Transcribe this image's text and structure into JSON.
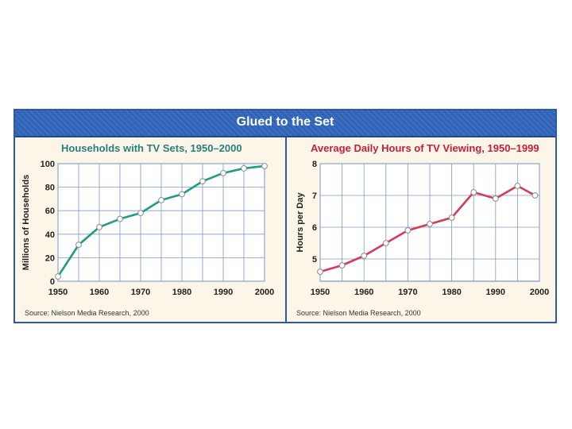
{
  "banner": {
    "title": "Glued to the Set"
  },
  "chart_data": [
    {
      "type": "line",
      "title": "Households with TV Sets, 1950–2000",
      "xlabel": "",
      "ylabel": "Millions of Households",
      "x": [
        1950,
        1955,
        1960,
        1965,
        1970,
        1975,
        1980,
        1985,
        1990,
        1995,
        2000
      ],
      "values": [
        4,
        31,
        46,
        53,
        58,
        69,
        74,
        85,
        92,
        96,
        98
      ],
      "xticks": [
        "1950",
        "1960",
        "1970",
        "1980",
        "1990",
        "2000"
      ],
      "yticks": [
        "0",
        "20",
        "40",
        "60",
        "80",
        "100"
      ],
      "xlim": [
        1950,
        2000
      ],
      "ylim": [
        0,
        100
      ],
      "source": "Source: Nielson Media Research, 2000",
      "title_color": "#2a7f7a",
      "line_color": "#1a9e80"
    },
    {
      "type": "line",
      "title": "Average Daily Hours of TV Viewing, 1950–1999",
      "xlabel": "",
      "ylabel": "Hours per Day",
      "x": [
        1950,
        1955,
        1960,
        1965,
        1970,
        1975,
        1980,
        1985,
        1990,
        1995,
        1999
      ],
      "values": [
        4.6,
        4.8,
        5.1,
        5.5,
        5.9,
        6.1,
        6.3,
        7.1,
        6.9,
        7.3,
        7.0
      ],
      "xticks": [
        "1950",
        "1960",
        "1970",
        "1980",
        "1990",
        "2000"
      ],
      "yticks": [
        "5",
        "6",
        "7",
        "8"
      ],
      "xlim": [
        1950,
        2000
      ],
      "ylim": [
        4.3,
        8
      ],
      "source": "Source: Nielson Media Research, 2000",
      "title_color": "#c41e3a",
      "line_color": "#d63a55"
    }
  ]
}
